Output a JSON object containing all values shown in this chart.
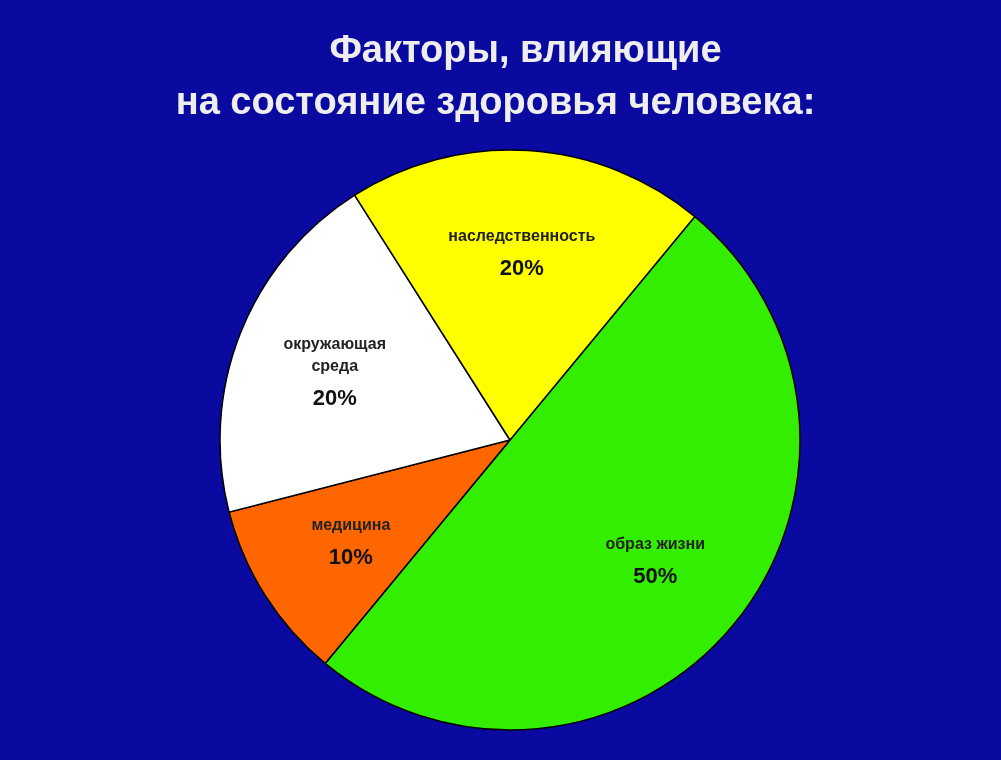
{
  "chart_data": {
    "type": "pie",
    "title": "Факторы, влияющие\nна состояние здоровья человека:",
    "categories": [
      "образ жизни",
      "медицина",
      "окружающая\nсреда",
      "наследственность"
    ],
    "values": [
      50,
      10,
      20,
      20
    ],
    "value_labels": [
      "50%",
      "10%",
      "20%",
      "20%"
    ],
    "colors": [
      "#33ee00",
      "#ff6600",
      "#ffffff",
      "#ffff00"
    ]
  }
}
